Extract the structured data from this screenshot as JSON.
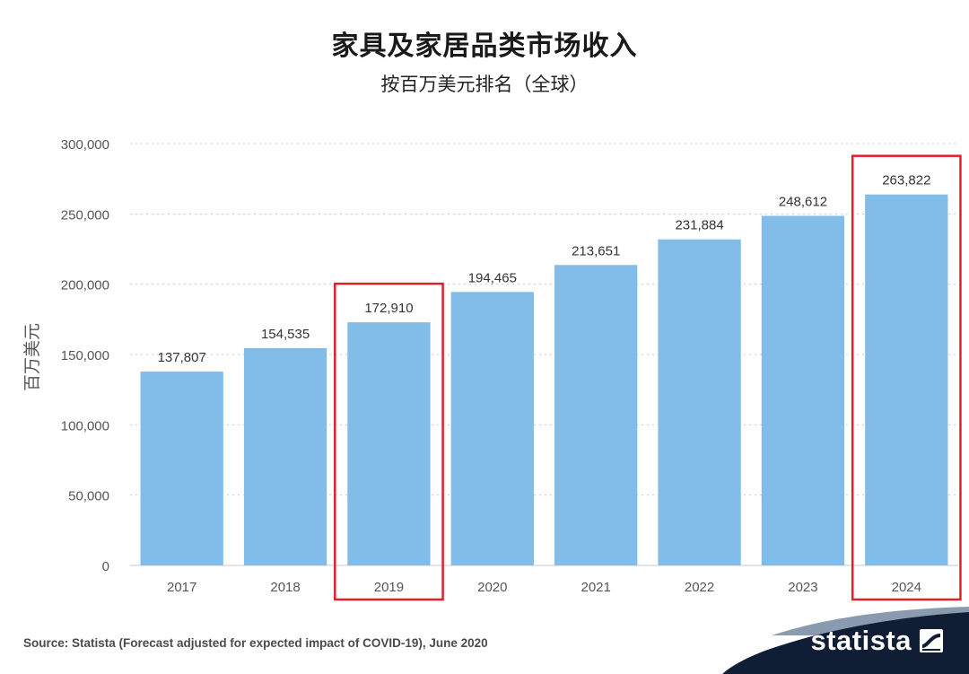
{
  "chart_data": {
    "type": "bar",
    "title": "家具及家居品类市场收入",
    "subtitle": "按百万美元排名（全球）",
    "ylabel": "百万美元",
    "xlabel": "",
    "categories": [
      "2017",
      "2018",
      "2019",
      "2020",
      "2021",
      "2022",
      "2023",
      "2024"
    ],
    "values": [
      137807,
      154535,
      172910,
      194465,
      213651,
      231884,
      248612,
      263822
    ],
    "value_labels": [
      "137,807",
      "154,535",
      "172,910",
      "194,465",
      "213,651",
      "231,884",
      "248,612",
      "263,822"
    ],
    "yticks": [
      0,
      50000,
      100000,
      150000,
      200000,
      250000,
      300000
    ],
    "ytick_labels": [
      "0",
      "50,000",
      "100,000",
      "150,000",
      "200,000",
      "250,000",
      "300,000"
    ],
    "ylim": [
      0,
      300000
    ],
    "grid": true,
    "legend": "none",
    "highlighted_categories": [
      "2019",
      "2024"
    ],
    "colors": {
      "bar": "#82bce8",
      "highlight_box": "#e0202a",
      "grid": "#c9c9c9",
      "tick_text": "#555555",
      "value_text": "#333333"
    }
  },
  "footer": {
    "source": "Source: Statista (Forecast adjusted for expected impact of COVID-19), June 2020",
    "logo_text": "statista",
    "band_color": "#0f1e35",
    "band_accent_color": "#8a9bb0"
  }
}
